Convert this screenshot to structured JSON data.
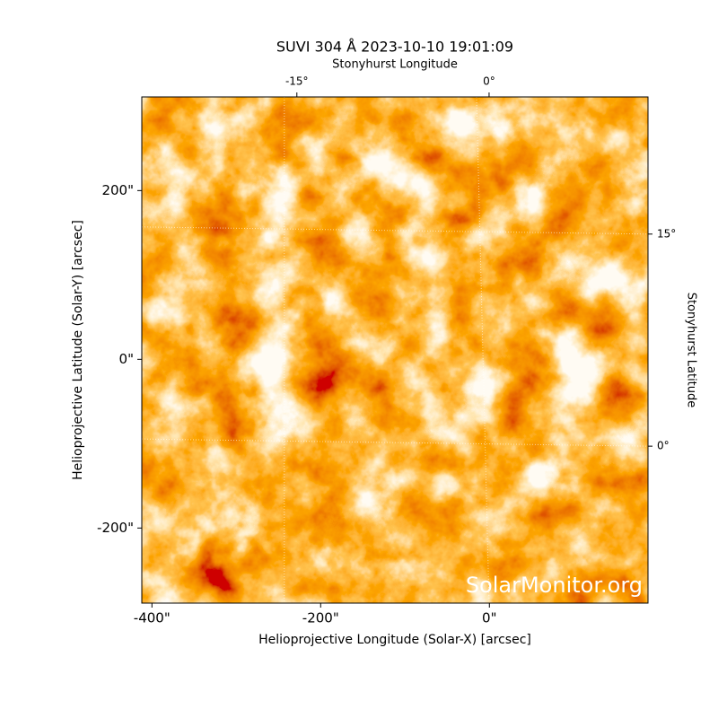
{
  "chart_data": {
    "type": "image",
    "title": "SUVI 304 Å 2023-10-10 19:01:09",
    "xlabel": "Helioprojective Longitude (Solar-X) [arcsec]",
    "ylabel": "Helioprojective Latitude (Solar-Y) [arcsec]",
    "x2label": "Stonyhurst Longitude",
    "y2label": "Stonyhurst Latitude",
    "xlim": [
      -412,
      188
    ],
    "ylim": [
      -289,
      311
    ],
    "xticks": [
      {
        "value": -400,
        "label": "-400\""
      },
      {
        "value": -200,
        "label": "-200\""
      },
      {
        "value": 0,
        "label": "0\""
      }
    ],
    "yticks": [
      {
        "value": -200,
        "label": "-200\""
      },
      {
        "value": 0,
        "label": "0\""
      },
      {
        "value": 200,
        "label": "200\""
      }
    ],
    "x2lim": [
      -27.1,
      12.4
    ],
    "y2lim": [
      -11.1,
      24.7
    ],
    "x2ticks": [
      {
        "value": -15,
        "label": "-15°"
      },
      {
        "value": 0,
        "label": "0°"
      }
    ],
    "y2ticks": [
      {
        "value": 0,
        "label": "0°"
      },
      {
        "value": 15,
        "label": "15°"
      }
    ],
    "grid": true,
    "watermark": "SolarMonitor.org"
  }
}
